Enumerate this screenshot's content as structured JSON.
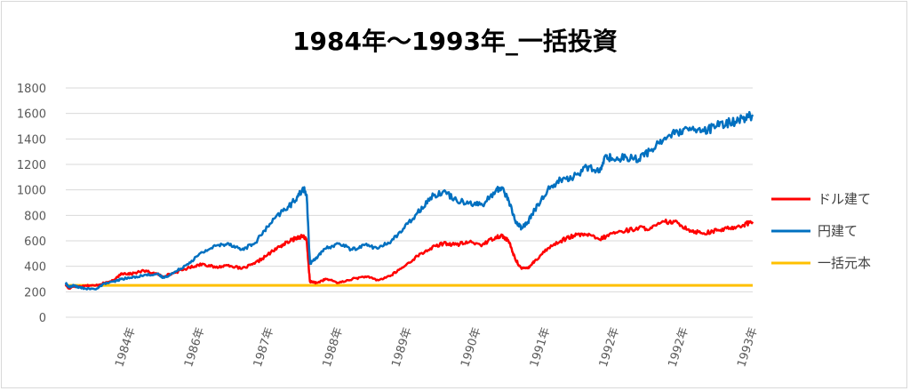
{
  "chart_data": {
    "type": "line",
    "title": "1984年～1993年_一括投資",
    "xlabel": "",
    "ylabel": "",
    "ylim": [
      0,
      1800
    ],
    "yticks": [
      0,
      200,
      400,
      600,
      800,
      1000,
      1200,
      1400,
      1600,
      1800
    ],
    "x_tick_labels": [
      "1984年",
      "1986年",
      "1987年",
      "1988年",
      "1989年",
      "1990年",
      "1991年",
      "1992年",
      "1992年",
      "1993年"
    ],
    "grid": "horizontal",
    "legend_position": "right",
    "series": [
      {
        "name": "ドル建て",
        "color": "#ff0000",
        "values": [
          [
            0,
            255
          ],
          [
            0.05,
            225
          ],
          [
            0.12,
            245
          ],
          [
            0.2,
            240
          ],
          [
            0.3,
            250
          ],
          [
            0.45,
            248
          ],
          [
            0.6,
            270
          ],
          [
            0.75,
            290
          ],
          [
            0.85,
            345
          ],
          [
            1.0,
            340
          ],
          [
            1.2,
            365
          ],
          [
            1.4,
            340
          ],
          [
            1.5,
            320
          ],
          [
            1.7,
            355
          ],
          [
            1.9,
            390
          ],
          [
            2.1,
            420
          ],
          [
            2.3,
            390
          ],
          [
            2.5,
            410
          ],
          [
            2.7,
            380
          ],
          [
            2.9,
            420
          ],
          [
            3.1,
            490
          ],
          [
            3.3,
            560
          ],
          [
            3.45,
            600
          ],
          [
            3.55,
            625
          ],
          [
            3.65,
            640
          ],
          [
            3.7,
            600
          ],
          [
            3.75,
            280
          ],
          [
            3.85,
            270
          ],
          [
            4.0,
            300
          ],
          [
            4.2,
            270
          ],
          [
            4.4,
            300
          ],
          [
            4.6,
            320
          ],
          [
            4.8,
            290
          ],
          [
            5.0,
            330
          ],
          [
            5.2,
            400
          ],
          [
            5.4,
            480
          ],
          [
            5.6,
            540
          ],
          [
            5.8,
            580
          ],
          [
            6.0,
            570
          ],
          [
            6.2,
            590
          ],
          [
            6.4,
            570
          ],
          [
            6.6,
            630
          ],
          [
            6.7,
            640
          ],
          [
            6.8,
            600
          ],
          [
            6.9,
            460
          ],
          [
            7.0,
            380
          ],
          [
            7.1,
            390
          ],
          [
            7.2,
            440
          ],
          [
            7.4,
            540
          ],
          [
            7.6,
            600
          ],
          [
            7.8,
            640
          ],
          [
            8.0,
            650
          ],
          [
            8.2,
            610
          ],
          [
            8.4,
            660
          ],
          [
            8.6,
            680
          ],
          [
            8.8,
            700
          ],
          [
            9.0,
            700
          ],
          [
            9.2,
            750
          ],
          [
            9.4,
            740
          ],
          [
            9.6,
            680
          ],
          [
            9.8,
            660
          ],
          [
            10.0,
            680
          ],
          [
            10.2,
            700
          ],
          [
            10.4,
            725
          ],
          [
            10.55,
            750
          ]
        ]
      },
      {
        "name": "円建て",
        "color": "#0070c0",
        "values": [
          [
            0,
            268
          ],
          [
            0.05,
            235
          ],
          [
            0.12,
            250
          ],
          [
            0.2,
            235
          ],
          [
            0.3,
            225
          ],
          [
            0.45,
            220
          ],
          [
            0.6,
            265
          ],
          [
            0.75,
            280
          ],
          [
            0.85,
            300
          ],
          [
            1.0,
            310
          ],
          [
            1.2,
            330
          ],
          [
            1.4,
            340
          ],
          [
            1.5,
            310
          ],
          [
            1.7,
            360
          ],
          [
            1.9,
            430
          ],
          [
            2.1,
            510
          ],
          [
            2.3,
            560
          ],
          [
            2.5,
            580
          ],
          [
            2.7,
            530
          ],
          [
            2.9,
            580
          ],
          [
            3.1,
            710
          ],
          [
            3.3,
            820
          ],
          [
            3.45,
            880
          ],
          [
            3.55,
            940
          ],
          [
            3.65,
            1010
          ],
          [
            3.7,
            960
          ],
          [
            3.75,
            420
          ],
          [
            3.85,
            470
          ],
          [
            4.0,
            540
          ],
          [
            4.2,
            580
          ],
          [
            4.4,
            530
          ],
          [
            4.6,
            570
          ],
          [
            4.8,
            540
          ],
          [
            5.0,
            600
          ],
          [
            5.2,
            700
          ],
          [
            5.4,
            820
          ],
          [
            5.6,
            940
          ],
          [
            5.8,
            990
          ],
          [
            6.0,
            920
          ],
          [
            6.2,
            900
          ],
          [
            6.4,
            880
          ],
          [
            6.6,
            990
          ],
          [
            6.7,
            1020
          ],
          [
            6.8,
            920
          ],
          [
            6.9,
            760
          ],
          [
            7.0,
            700
          ],
          [
            7.1,
            750
          ],
          [
            7.2,
            840
          ],
          [
            7.4,
            1000
          ],
          [
            7.6,
            1080
          ],
          [
            7.8,
            1100
          ],
          [
            8.0,
            1180
          ],
          [
            8.2,
            1140
          ],
          [
            8.3,
            1270
          ],
          [
            8.4,
            1240
          ],
          [
            8.6,
            1260
          ],
          [
            8.8,
            1240
          ],
          [
            9.0,
            1320
          ],
          [
            9.2,
            1410
          ],
          [
            9.4,
            1450
          ],
          [
            9.6,
            1470
          ],
          [
            9.8,
            1460
          ],
          [
            10.0,
            1500
          ],
          [
            10.2,
            1530
          ],
          [
            10.4,
            1560
          ],
          [
            10.55,
            1590
          ]
        ]
      },
      {
        "name": "一括元本",
        "color": "#ffc000",
        "values": [
          [
            0,
            250
          ],
          [
            10.55,
            250
          ]
        ]
      }
    ]
  }
}
